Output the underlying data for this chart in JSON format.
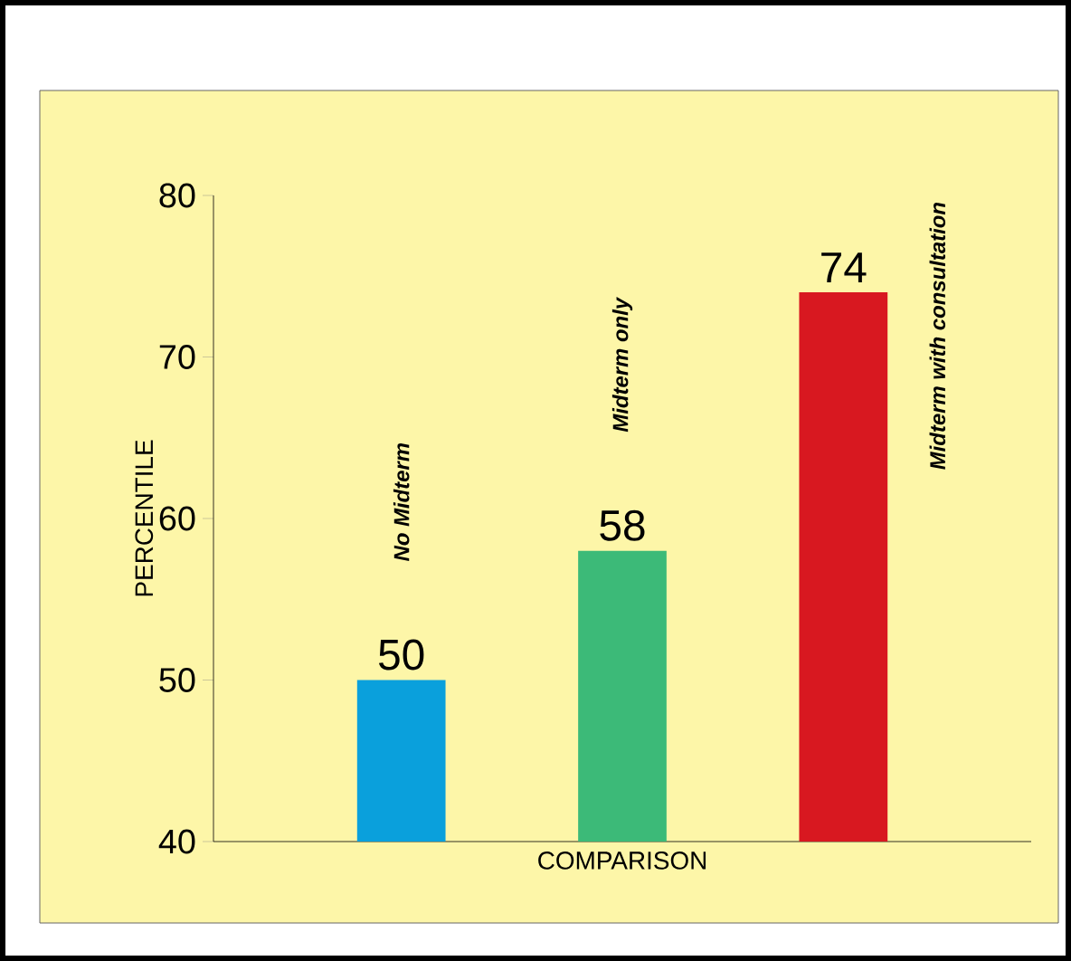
{
  "chart_data": {
    "type": "bar",
    "xlabel": "COMPARISON",
    "ylabel": "PERCENTILE",
    "categories": [
      "No Midterm",
      "Midterm only",
      "Midterm with consultation"
    ],
    "values": [
      50,
      58,
      74
    ],
    "colors": [
      "#0aa0dc",
      "#3cba78",
      "#d81820"
    ],
    "ylim": [
      40,
      80
    ],
    "yticks": [
      40,
      50,
      60,
      70,
      80
    ],
    "data_labels": true
  }
}
